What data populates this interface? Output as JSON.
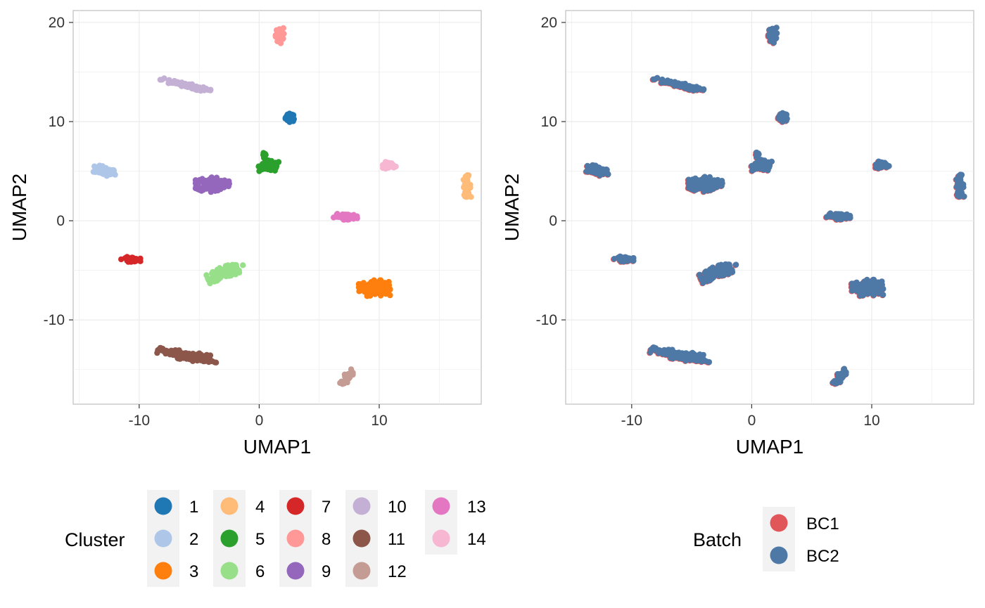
{
  "chart_data": [
    {
      "type": "scatter",
      "xlabel": "UMAP1",
      "ylabel": "UMAP2",
      "xlim": [
        -15.5,
        18.5
      ],
      "ylim": [
        -18.5,
        21.2
      ],
      "xticks": [
        -10,
        0,
        10
      ],
      "yticks": [
        -10,
        0,
        10,
        20
      ],
      "grid": true,
      "legend": {
        "title": "Cluster",
        "placement": "bottom",
        "entries": [
          "1",
          "2",
          "3",
          "4",
          "5",
          "6",
          "7",
          "8",
          "9",
          "10",
          "11",
          "12",
          "13",
          "14"
        ]
      },
      "series": [
        {
          "name": "1",
          "color": "#1f77b4",
          "clusters": [
            {
              "cx": 2.6,
              "cy": 10.4,
              "rx": 0.45,
              "ry": 0.45,
              "angle": 0,
              "n": 40
            }
          ]
        },
        {
          "name": "2",
          "color": "#aec7e8",
          "clusters": [
            {
              "cx": -12.9,
              "cy": 5.0,
              "rx": 1.0,
              "ry": 0.45,
              "angle": -15,
              "n": 80
            }
          ]
        },
        {
          "name": "3",
          "color": "#ff7f0e",
          "clusters": [
            {
              "cx": 9.6,
              "cy": -6.8,
              "rx": 1.3,
              "ry": 0.8,
              "angle": 0,
              "n": 150
            }
          ]
        },
        {
          "name": "4",
          "color": "#ffbb78",
          "clusters": [
            {
              "cx": 17.3,
              "cy": 3.5,
              "rx": 0.35,
              "ry": 1.1,
              "angle": 0,
              "n": 50
            }
          ]
        },
        {
          "name": "5",
          "color": "#2ca02c",
          "clusters": [
            {
              "cx": 0.9,
              "cy": 5.5,
              "rx": 1.0,
              "ry": 0.6,
              "angle": 0,
              "n": 70
            },
            {
              "cx": 0.4,
              "cy": 6.5,
              "rx": 0.2,
              "ry": 0.4,
              "angle": 0,
              "n": 10
            }
          ]
        },
        {
          "name": "6",
          "color": "#98df8a",
          "clusters": [
            {
              "cx": -2.8,
              "cy": -5.2,
              "rx": 1.6,
              "ry": 0.6,
              "angle": 20,
              "n": 110
            }
          ]
        },
        {
          "name": "7",
          "color": "#d62728",
          "clusters": [
            {
              "cx": -10.7,
              "cy": -3.9,
              "rx": 0.8,
              "ry": 0.25,
              "angle": 0,
              "n": 40
            }
          ]
        },
        {
          "name": "8",
          "color": "#ff9896",
          "clusters": [
            {
              "cx": 1.7,
              "cy": 18.7,
              "rx": 0.35,
              "ry": 0.8,
              "angle": 0,
              "n": 50
            }
          ]
        },
        {
          "name": "9",
          "color": "#9467bd",
          "clusters": [
            {
              "cx": -3.9,
              "cy": 3.7,
              "rx": 1.4,
              "ry": 0.8,
              "angle": 0,
              "n": 130
            }
          ]
        },
        {
          "name": "10",
          "color": "#c5b0d5",
          "clusters": [
            {
              "cx": -6.3,
              "cy": 13.7,
              "rx": 2.3,
              "ry": 0.25,
              "angle": -15,
              "n": 80
            }
          ]
        },
        {
          "name": "11",
          "color": "#8c564b",
          "clusters": [
            {
              "cx": -6.0,
              "cy": -13.6,
              "rx": 2.5,
              "ry": 0.45,
              "angle": -12,
              "n": 140
            }
          ]
        },
        {
          "name": "12",
          "color": "#c49c94",
          "clusters": [
            {
              "cx": 7.3,
              "cy": -15.8,
              "rx": 0.3,
              "ry": 0.9,
              "angle": -30,
              "n": 35
            }
          ]
        },
        {
          "name": "13",
          "color": "#e377c2",
          "clusters": [
            {
              "cx": 7.3,
              "cy": 0.4,
              "rx": 1.1,
              "ry": 0.3,
              "angle": 0,
              "n": 60
            }
          ]
        },
        {
          "name": "14",
          "color": "#f7b6d2",
          "clusters": [
            {
              "cx": 10.9,
              "cy": 5.6,
              "rx": 0.6,
              "ry": 0.35,
              "angle": 0,
              "n": 35
            }
          ]
        }
      ]
    },
    {
      "type": "scatter",
      "xlabel": "UMAP1",
      "ylabel": "UMAP2",
      "xlim": [
        -15.5,
        18.5
      ],
      "ylim": [
        -18.5,
        21.2
      ],
      "xticks": [
        -10,
        0,
        10
      ],
      "yticks": [
        -10,
        0,
        10,
        20
      ],
      "grid": true,
      "legend": {
        "title": "Batch",
        "placement": "bottom",
        "entries": [
          "BC1",
          "BC2"
        ]
      },
      "series": [
        {
          "name": "BC1",
          "color": "#e15759"
        },
        {
          "name": "BC2",
          "color": "#4e79a7"
        }
      ]
    }
  ]
}
